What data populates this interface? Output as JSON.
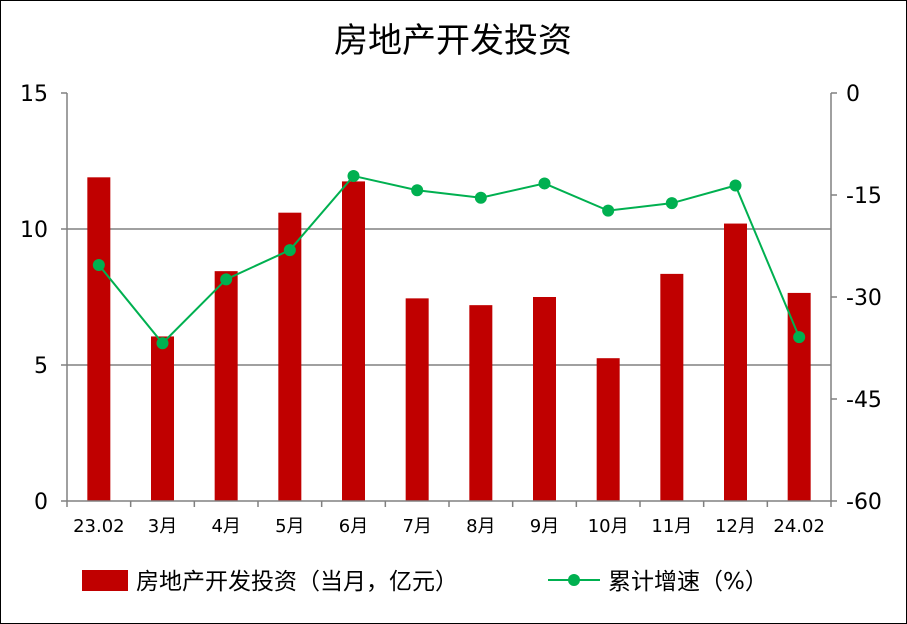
{
  "chart_data": {
    "type": "bar+line",
    "title": "房地产开发投资",
    "categories": [
      "23.02",
      "3月",
      "4月",
      "5月",
      "6月",
      "7月",
      "8月",
      "9月",
      "10月",
      "11月",
      "12月",
      "24.02"
    ],
    "series": [
      {
        "name": "房地产开发投资（当月，亿元）",
        "type": "bar",
        "axis": "left",
        "color": "#c00000",
        "values": [
          11.9,
          6.05,
          8.45,
          10.6,
          11.75,
          7.45,
          7.2,
          7.5,
          5.25,
          8.35,
          10.2,
          7.65
        ]
      },
      {
        "name": "累计增速（%）",
        "type": "line",
        "axis": "right",
        "color": "#00b050",
        "values": [
          -25.3,
          -36.8,
          -27.4,
          -23.1,
          -12.2,
          -14.3,
          -15.4,
          -13.3,
          -17.3,
          -16.2,
          -13.6,
          -35.9
        ]
      }
    ],
    "yleft": {
      "min": 0,
      "max": 15,
      "ticks": [
        0,
        5,
        10,
        15
      ]
    },
    "yright": {
      "min": -60,
      "max": 0,
      "ticks": [
        0,
        -15,
        -30,
        -45,
        -60
      ]
    },
    "gridlines": [
      5,
      10
    ],
    "legend_position": "bottom"
  }
}
